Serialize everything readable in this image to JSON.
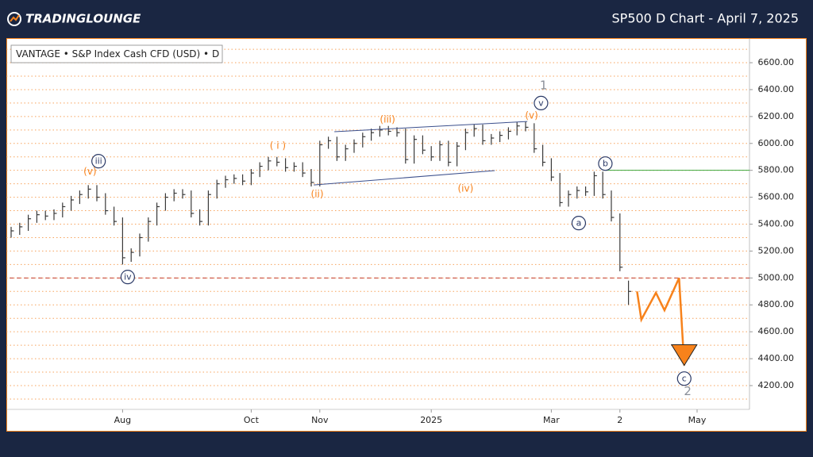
{
  "chart_data": {
    "type": "hlc",
    "source": "TRADINGLOUNGE",
    "title": "SP500 D Chart - April 7, 2025",
    "instrument": "VANTAGE • S&P Index Cash CFD (USD) • D",
    "categories": [
      null,
      null,
      null,
      null,
      null,
      null,
      null,
      null,
      null,
      null,
      null,
      null,
      null,
      "Aug",
      null,
      null,
      null,
      null,
      null,
      null,
      null,
      null,
      null,
      null,
      null,
      null,
      null,
      null,
      "Oct",
      null,
      null,
      null,
      null,
      null,
      null,
      null,
      "Nov",
      null,
      null,
      null,
      null,
      null,
      null,
      null,
      null,
      null,
      null,
      null,
      null,
      "2025",
      null,
      null,
      null,
      null,
      null,
      null,
      null,
      null,
      null,
      null,
      null,
      null,
      null,
      "Mar",
      null,
      null,
      null,
      null,
      null,
      null,
      null,
      "2",
      null,
      null,
      null,
      null,
      null,
      null,
      null,
      null,
      "May",
      null,
      null,
      null,
      null,
      null,
      null
    ],
    "series": [
      {
        "name": "SP500",
        "color": "#3a3a3a",
        "high": [
          5380,
          5410,
          5470,
          5500,
          5500,
          5510,
          5560,
          5610,
          5650,
          5690,
          5690,
          5630,
          5530,
          5450,
          5220,
          5330,
          5450,
          5560,
          5630,
          5660,
          5660,
          5650,
          5510,
          5650,
          5730,
          5760,
          5770,
          5770,
          5810,
          5860,
          5900,
          5900,
          5890,
          5860,
          5860,
          5810,
          6020,
          6050,
          6050,
          5990,
          6030,
          6080,
          6110,
          6130,
          6130,
          6120,
          6110,
          6060,
          6060,
          5980,
          6020,
          6020,
          6010,
          6110,
          6140,
          6140,
          6070,
          6090,
          6120,
          6160,
          6160,
          6150,
          5990,
          5890,
          5780,
          5650,
          5680,
          5680,
          5790,
          5790,
          5650,
          5480,
          4980,
          null,
          null,
          null,
          null,
          null,
          null,
          null,
          null,
          null,
          null,
          null,
          null,
          null,
          null
        ],
        "low": [
          5300,
          5320,
          5350,
          5410,
          5430,
          5430,
          5450,
          5500,
          5550,
          5590,
          5570,
          5470,
          5390,
          5100,
          5120,
          5160,
          5270,
          5390,
          5500,
          5570,
          5590,
          5450,
          5390,
          5390,
          5590,
          5670,
          5700,
          5690,
          5690,
          5750,
          5800,
          5830,
          5790,
          5790,
          5750,
          5680,
          5680,
          5960,
          5870,
          5870,
          5930,
          5970,
          6020,
          6050,
          6060,
          6050,
          5850,
          5850,
          5920,
          5870,
          5870,
          5830,
          5830,
          5950,
          6050,
          5990,
          5990,
          6010,
          6030,
          6060,
          6090,
          5930,
          5830,
          5720,
          5530,
          5530,
          5590,
          5610,
          5610,
          5590,
          5420,
          5050,
          4800,
          null,
          null,
          null,
          null,
          null,
          null,
          null,
          null,
          null,
          null,
          null,
          null,
          null,
          null
        ],
        "close": [
          5350,
          5380,
          5440,
          5470,
          5460,
          5480,
          5530,
          5580,
          5620,
          5660,
          5600,
          5500,
          5420,
          5150,
          5190,
          5300,
          5420,
          5530,
          5600,
          5630,
          5620,
          5480,
          5420,
          5620,
          5700,
          5730,
          5740,
          5720,
          5780,
          5830,
          5870,
          5860,
          5820,
          5830,
          5780,
          5710,
          5990,
          6020,
          5900,
          5960,
          6000,
          6050,
          6080,
          6100,
          6090,
          6080,
          5880,
          6030,
          5950,
          5900,
          5990,
          5860,
          5980,
          6080,
          6110,
          6020,
          6040,
          6060,
          6090,
          6130,
          6120,
          5960,
          5860,
          5750,
          5560,
          5620,
          5650,
          5640,
          5760,
          5620,
          5450,
          5080,
          4900,
          null,
          null,
          null,
          null,
          null,
          null,
          null,
          null,
          null,
          null,
          null,
          null,
          null,
          null
        ]
      }
    ],
    "ylim": [
      4023,
      6783
    ],
    "yticks": [
      {
        "value": 4200,
        "label": "4200.00"
      },
      {
        "value": 4400,
        "label": "4400.00"
      },
      {
        "value": 4600,
        "label": "4600.00"
      },
      {
        "value": 4800,
        "label": "4800.00"
      },
      {
        "value": 5000,
        "label": "5000.00"
      },
      {
        "value": 5200,
        "label": "5200.00"
      },
      {
        "value": 5400,
        "label": "5400.00"
      },
      {
        "value": 5600,
        "label": "5600.00"
      },
      {
        "value": 5800,
        "label": "5800.00"
      },
      {
        "value": 6000,
        "label": "6000.00"
      },
      {
        "value": 6200,
        "label": "6200.00"
      },
      {
        "value": 6400,
        "label": "6400.00"
      },
      {
        "value": 6600,
        "label": "6600.00"
      }
    ],
    "minor_yticks": [
      4100,
      4300,
      4500,
      4700,
      4900,
      5100,
      5300,
      5500,
      5700,
      5900,
      6100,
      6300,
      6500,
      6700
    ],
    "grid": true,
    "levels": [
      {
        "value": 5800,
        "color": "#3aa63a",
        "from": 69.3,
        "dash": false
      },
      {
        "value": 5000,
        "color": "#c0392b",
        "from": -1,
        "dash": true
      }
    ],
    "trendlines": [
      {
        "x": [
          37.7,
          60.2
        ],
        "y": [
          6087,
          6163
        ],
        "color": "#3b4f8c"
      },
      {
        "x": [
          35.3,
          56.4
        ],
        "y": [
          5691,
          5798
        ],
        "color": "#3b4f8c"
      }
    ],
    "projection": {
      "color": "#f7821b",
      "x": [
        73,
        73.5,
        75.2,
        76.2,
        77.9,
        78.5
      ],
      "y": [
        4900,
        4690,
        4890,
        4760,
        5000,
        4350
      ]
    },
    "annotations": [
      {
        "text": "(v)",
        "x": 9.2,
        "y": 5790,
        "style": "orange"
      },
      {
        "text": "iii",
        "x": 10.2,
        "y": 5868,
        "style": "circle"
      },
      {
        "text": "iv",
        "x": 13.6,
        "y": 5007,
        "style": "circle"
      },
      {
        "text": "( i )",
        "x": 31.1,
        "y": 5980,
        "style": "orange"
      },
      {
        "text": "(ii)",
        "x": 35.7,
        "y": 5620,
        "style": "orange"
      },
      {
        "text": "(iii)",
        "x": 43.9,
        "y": 6175,
        "style": "orange"
      },
      {
        "text": "(iv)",
        "x": 53,
        "y": 5662,
        "style": "orange"
      },
      {
        "text": "(v)",
        "x": 60.7,
        "y": 6205,
        "style": "orange"
      },
      {
        "text": "v",
        "x": 61.8,
        "y": 6300,
        "style": "circle"
      },
      {
        "text": "1",
        "x": 62.1,
        "y": 6430,
        "style": "grey"
      },
      {
        "text": "a",
        "x": 66.2,
        "y": 5408,
        "style": "circle"
      },
      {
        "text": "b",
        "x": 69.3,
        "y": 5850,
        "style": "circle"
      },
      {
        "text": "c",
        "x": 78.5,
        "y": 4252,
        "style": "circle"
      },
      {
        "text": "2",
        "x": 78.9,
        "y": 4157,
        "style": "grey"
      }
    ]
  }
}
